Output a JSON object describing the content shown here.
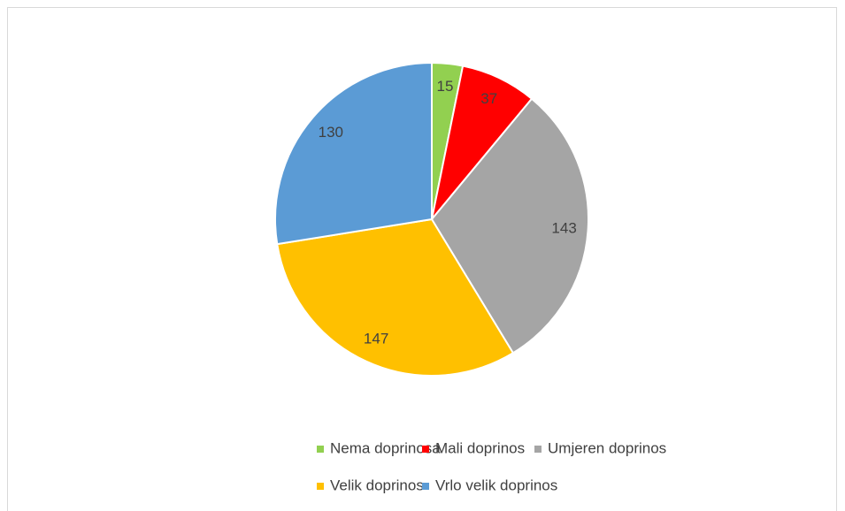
{
  "chart_data": {
    "type": "pie",
    "categories": [
      "Nema doprinosa",
      "Mali doprinos",
      "Umjeren doprinos",
      "Velik doprinos",
      "Vrlo velik doprinos"
    ],
    "values": [
      15,
      37,
      143,
      147,
      130
    ],
    "colors": [
      "#92d050",
      "#ff0000",
      "#a5a5a5",
      "#ffc000",
      "#5b9bd5"
    ],
    "legend": "bottom"
  }
}
